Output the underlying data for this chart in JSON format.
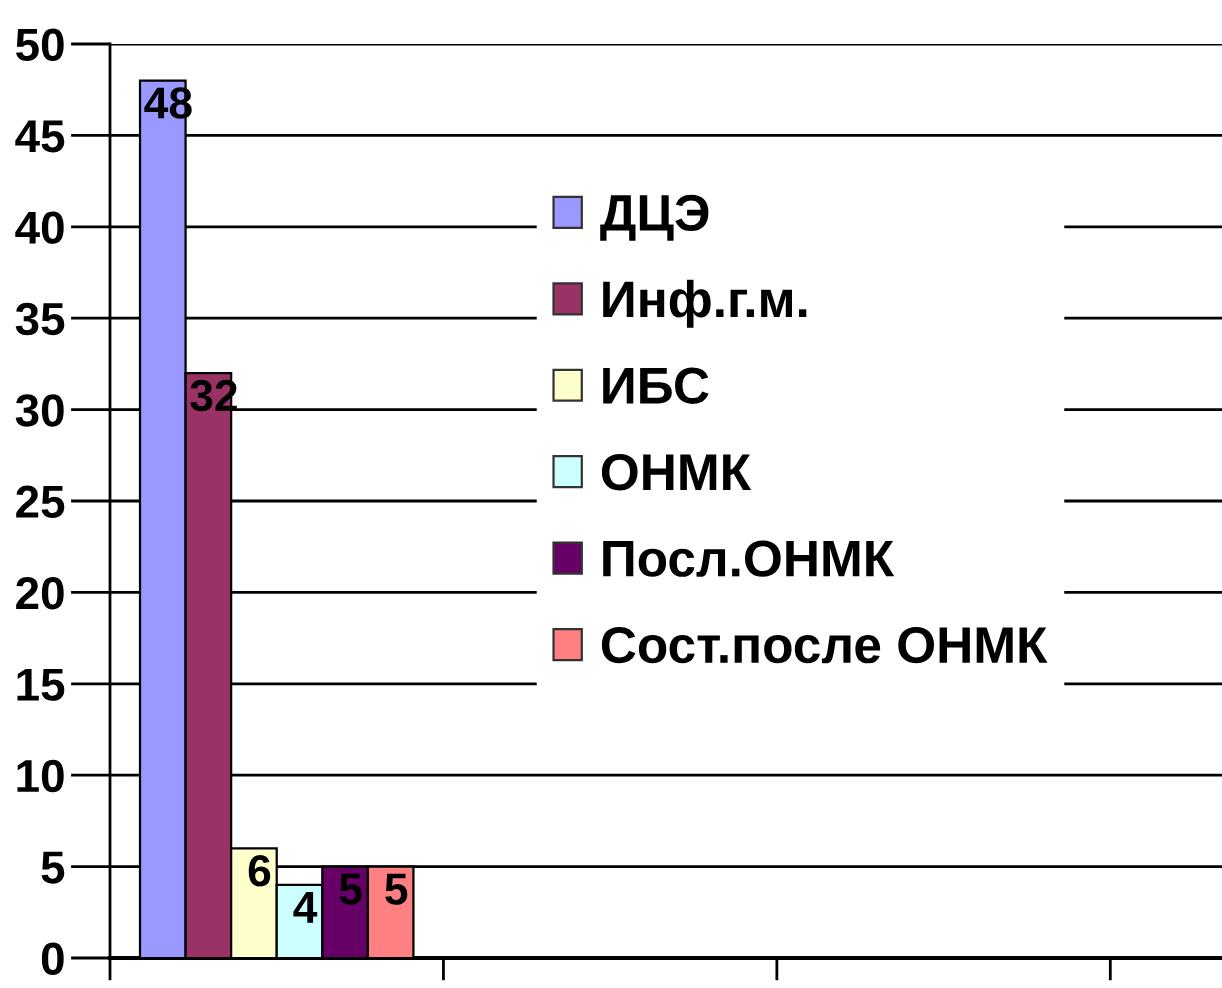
{
  "chart_data": {
    "type": "bar",
    "categories": [
      null,
      null,
      null
    ],
    "series": [
      {
        "name": "ДЦЭ",
        "color": "#9999ff",
        "values": [
          48,
          null,
          null
        ]
      },
      {
        "name": "Инф.г.м.",
        "color": "#993366",
        "values": [
          32,
          null,
          null
        ]
      },
      {
        "name": "ИБС",
        "color": "#ffffcc",
        "values": [
          6,
          null,
          null
        ]
      },
      {
        "name": "ОНМК",
        "color": "#ccffff",
        "values": [
          4,
          null,
          null
        ]
      },
      {
        "name": "Посл.ОНМК",
        "color": "#660066",
        "values": [
          5,
          null,
          null
        ]
      },
      {
        "name": "Сост.после ОНМК",
        "color": "#ff8080",
        "values": [
          5,
          null,
          null
        ]
      }
    ],
    "ylim": [
      0,
      50
    ],
    "yticks": [
      0,
      5,
      10,
      15,
      20,
      25,
      30,
      35,
      40,
      45,
      50
    ],
    "grid": "y",
    "legend": "right",
    "data_labels": true
  }
}
